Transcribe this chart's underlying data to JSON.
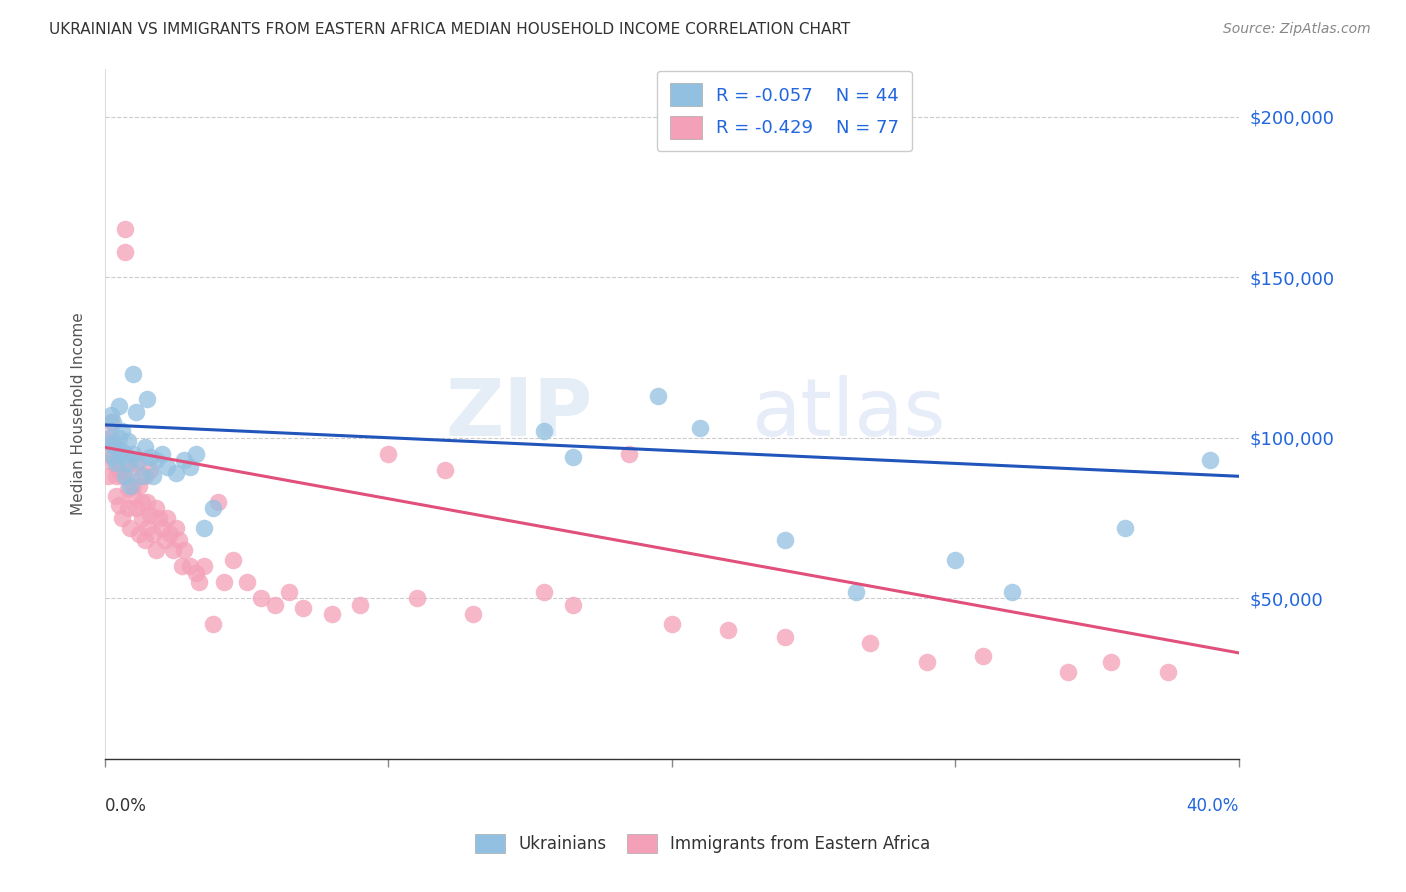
{
  "title": "UKRAINIAN VS IMMIGRANTS FROM EASTERN AFRICA MEDIAN HOUSEHOLD INCOME CORRELATION CHART",
  "source": "Source: ZipAtlas.com",
  "ylabel": "Median Household Income",
  "y_ticks": [
    0,
    50000,
    100000,
    150000,
    200000
  ],
  "y_tick_labels": [
    "",
    "$50,000",
    "$100,000",
    "$150,000",
    "$200,000"
  ],
  "x_min": 0.0,
  "x_max": 0.4,
  "y_min": 0,
  "y_max": 215000,
  "watermark_zip": "ZIP",
  "watermark_atlas": "atlas",
  "legend_labels": [
    "Ukrainians",
    "Immigrants from Eastern Africa"
  ],
  "legend_R": [
    "-0.057",
    "-0.429"
  ],
  "legend_N": [
    "44",
    "77"
  ],
  "blue_color": "#92C0E0",
  "pink_color": "#F4A0B8",
  "line_blue": "#2255BB",
  "line_pink": "#E0507A",
  "title_color": "#333333",
  "tick_label_color": "#2266DD",
  "ukrainians_x": [
    0.001,
    0.002,
    0.002,
    0.003,
    0.003,
    0.004,
    0.004,
    0.005,
    0.005,
    0.006,
    0.006,
    0.007,
    0.007,
    0.008,
    0.008,
    0.009,
    0.01,
    0.01,
    0.011,
    0.012,
    0.013,
    0.014,
    0.015,
    0.016,
    0.017,
    0.018,
    0.02,
    0.022,
    0.025,
    0.028,
    0.03,
    0.032,
    0.035,
    0.038,
    0.155,
    0.165,
    0.195,
    0.21,
    0.24,
    0.265,
    0.3,
    0.32,
    0.36,
    0.39
  ],
  "ukrainians_y": [
    100000,
    107000,
    98000,
    94000,
    105000,
    97000,
    92000,
    110000,
    100000,
    96000,
    102000,
    88000,
    95000,
    92000,
    99000,
    85000,
    120000,
    95000,
    108000,
    93000,
    88000,
    97000,
    112000,
    94000,
    88000,
    93000,
    95000,
    91000,
    89000,
    93000,
    91000,
    95000,
    72000,
    78000,
    102000,
    94000,
    113000,
    103000,
    68000,
    52000,
    62000,
    52000,
    72000,
    93000
  ],
  "eastern_africa_x": [
    0.001,
    0.001,
    0.002,
    0.002,
    0.003,
    0.003,
    0.004,
    0.004,
    0.005,
    0.005,
    0.005,
    0.006,
    0.006,
    0.007,
    0.007,
    0.008,
    0.008,
    0.009,
    0.009,
    0.01,
    0.01,
    0.011,
    0.011,
    0.012,
    0.012,
    0.013,
    0.013,
    0.014,
    0.014,
    0.015,
    0.015,
    0.016,
    0.016,
    0.017,
    0.018,
    0.018,
    0.019,
    0.02,
    0.021,
    0.022,
    0.023,
    0.024,
    0.025,
    0.026,
    0.027,
    0.028,
    0.03,
    0.032,
    0.033,
    0.035,
    0.038,
    0.04,
    0.042,
    0.045,
    0.05,
    0.055,
    0.06,
    0.065,
    0.07,
    0.08,
    0.09,
    0.1,
    0.11,
    0.12,
    0.13,
    0.155,
    0.165,
    0.185,
    0.2,
    0.22,
    0.24,
    0.27,
    0.29,
    0.31,
    0.34,
    0.355,
    0.375
  ],
  "eastern_africa_y": [
    95000,
    88000,
    100000,
    105000,
    92000,
    98000,
    88000,
    82000,
    95000,
    90000,
    79000,
    88000,
    75000,
    165000,
    158000,
    84000,
    78000,
    90000,
    72000,
    82000,
    85000,
    78000,
    92000,
    70000,
    85000,
    80000,
    75000,
    88000,
    68000,
    80000,
    72000,
    90000,
    76000,
    70000,
    78000,
    65000,
    75000,
    72000,
    68000,
    75000,
    70000,
    65000,
    72000,
    68000,
    60000,
    65000,
    60000,
    58000,
    55000,
    60000,
    42000,
    80000,
    55000,
    62000,
    55000,
    50000,
    48000,
    52000,
    47000,
    45000,
    48000,
    95000,
    50000,
    90000,
    45000,
    52000,
    48000,
    95000,
    42000,
    40000,
    38000,
    36000,
    30000,
    32000,
    27000,
    30000,
    27000
  ],
  "ukr_line_x": [
    0.0,
    0.4
  ],
  "ukr_line_y": [
    104000,
    88000
  ],
  "ea_line_x": [
    0.0,
    0.4
  ],
  "ea_line_y": [
    97000,
    33000
  ]
}
